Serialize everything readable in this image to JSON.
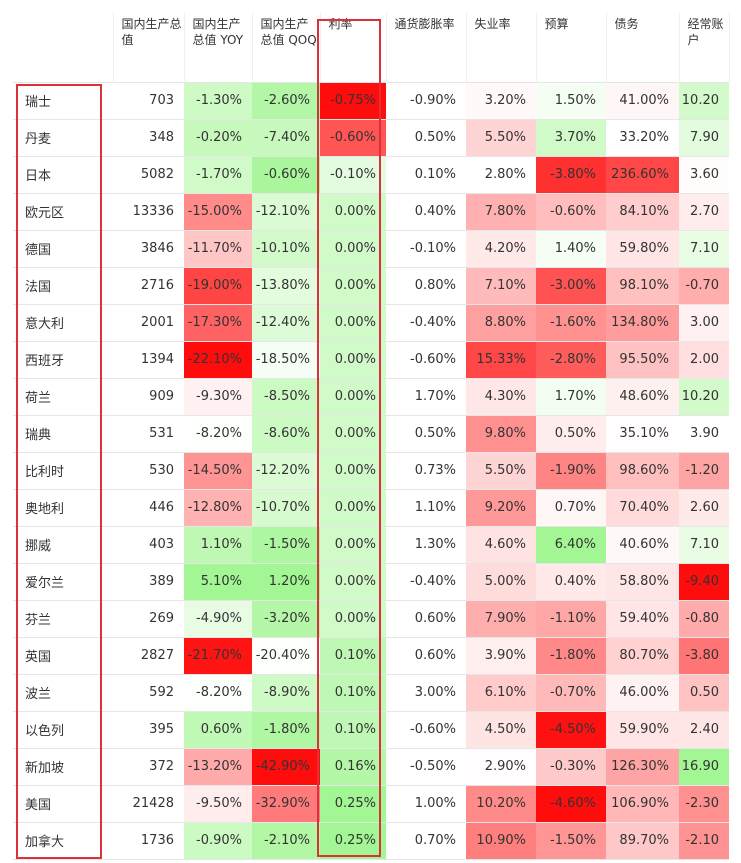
{
  "table": {
    "columns": [
      "国内生产总值",
      "国内生产总值 YOY",
      "国内生产总值 QOQ",
      "利率",
      "通货膨胀率",
      "失业率",
      "预算",
      "债务",
      "经常账户"
    ],
    "rows": [
      {
        "country": "瑞士",
        "vals": [
          "703",
          "-1.30%",
          "-2.60%",
          "-0.75%",
          "-0.90%",
          "3.20%",
          "1.50%",
          "41.00%",
          "10.20"
        ]
      },
      {
        "country": "丹麦",
        "vals": [
          "348",
          "-0.20%",
          "-7.40%",
          "-0.60%",
          "0.50%",
          "5.50%",
          "3.70%",
          "33.20%",
          "7.90"
        ]
      },
      {
        "country": "日本",
        "vals": [
          "5082",
          "-1.70%",
          "-0.60%",
          "-0.10%",
          "0.10%",
          "2.80%",
          "-3.80%",
          "236.60%",
          "3.60"
        ]
      },
      {
        "country": "欧元区",
        "vals": [
          "13336",
          "-15.00%",
          "-12.10%",
          "0.00%",
          "0.40%",
          "7.80%",
          "-0.60%",
          "84.10%",
          "2.70"
        ]
      },
      {
        "country": "德国",
        "vals": [
          "3846",
          "-11.70%",
          "-10.10%",
          "0.00%",
          "-0.10%",
          "4.20%",
          "1.40%",
          "59.80%",
          "7.10"
        ]
      },
      {
        "country": "法国",
        "vals": [
          "2716",
          "-19.00%",
          "-13.80%",
          "0.00%",
          "0.80%",
          "7.10%",
          "-3.00%",
          "98.10%",
          "-0.70"
        ]
      },
      {
        "country": "意大利",
        "vals": [
          "2001",
          "-17.30%",
          "-12.40%",
          "0.00%",
          "-0.40%",
          "8.80%",
          "-1.60%",
          "134.80%",
          "3.00"
        ]
      },
      {
        "country": "西班牙",
        "vals": [
          "1394",
          "-22.10%",
          "-18.50%",
          "0.00%",
          "-0.60%",
          "15.33%",
          "-2.80%",
          "95.50%",
          "2.00"
        ]
      },
      {
        "country": "荷兰",
        "vals": [
          "909",
          "-9.30%",
          "-8.50%",
          "0.00%",
          "1.70%",
          "4.30%",
          "1.70%",
          "48.60%",
          "10.20"
        ]
      },
      {
        "country": "瑞典",
        "vals": [
          "531",
          "-8.20%",
          "-8.60%",
          "0.00%",
          "0.50%",
          "9.80%",
          "0.50%",
          "35.10%",
          "3.90"
        ]
      },
      {
        "country": "比利时",
        "vals": [
          "530",
          "-14.50%",
          "-12.20%",
          "0.00%",
          "0.73%",
          "5.50%",
          "-1.90%",
          "98.60%",
          "-1.20"
        ]
      },
      {
        "country": "奥地利",
        "vals": [
          "446",
          "-12.80%",
          "-10.70%",
          "0.00%",
          "1.10%",
          "9.20%",
          "0.70%",
          "70.40%",
          "2.60"
        ]
      },
      {
        "country": "挪威",
        "vals": [
          "403",
          "1.10%",
          "-1.50%",
          "0.00%",
          "1.30%",
          "4.60%",
          "6.40%",
          "40.60%",
          "7.10"
        ]
      },
      {
        "country": "爱尔兰",
        "vals": [
          "389",
          "5.10%",
          "1.20%",
          "0.00%",
          "-0.40%",
          "5.00%",
          "0.40%",
          "58.80%",
          "-9.40"
        ]
      },
      {
        "country": "芬兰",
        "vals": [
          "269",
          "-4.90%",
          "-3.20%",
          "0.00%",
          "0.60%",
          "7.90%",
          "-1.10%",
          "59.40%",
          "-0.80"
        ]
      },
      {
        "country": "英国",
        "vals": [
          "2827",
          "-21.70%",
          "-20.40%",
          "0.10%",
          "0.60%",
          "3.90%",
          "-1.80%",
          "80.70%",
          "-3.80"
        ]
      },
      {
        "country": "波兰",
        "vals": [
          "592",
          "-8.20%",
          "-8.90%",
          "0.10%",
          "3.00%",
          "6.10%",
          "-0.70%",
          "46.00%",
          "0.50"
        ]
      },
      {
        "country": "以色列",
        "vals": [
          "395",
          "0.60%",
          "-1.80%",
          "0.10%",
          "-0.60%",
          "4.50%",
          "-4.50%",
          "59.90%",
          "2.40"
        ]
      },
      {
        "country": "新加坡",
        "vals": [
          "372",
          "-13.20%",
          "-42.90%",
          "0.16%",
          "-0.50%",
          "2.90%",
          "-0.30%",
          "126.30%",
          "16.90"
        ]
      },
      {
        "country": "美国",
        "vals": [
          "21428",
          "-9.50%",
          "-32.90%",
          "0.25%",
          "1.00%",
          "10.20%",
          "-4.60%",
          "106.90%",
          "-2.30"
        ]
      },
      {
        "country": "加拿大",
        "vals": [
          "1736",
          "-0.90%",
          "-2.10%",
          "0.25%",
          "0.70%",
          "10.90%",
          "-1.50%",
          "89.70%",
          "-2.10"
        ]
      }
    ]
  },
  "colors": {
    "accent_box": "#d9323a",
    "negative_heat": "#ff0000",
    "positive_heat": "#9ef58e",
    "border": "#e6e6e6"
  }
}
